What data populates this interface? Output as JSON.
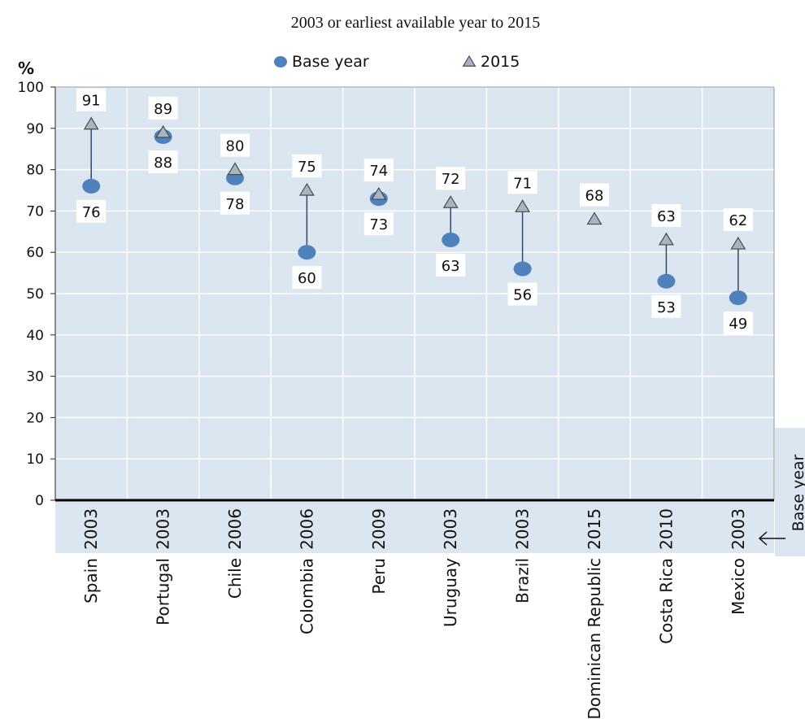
{
  "chart_data": {
    "type": "scatter",
    "title": "2003 or earliest available year to 2015",
    "ylabel": "%",
    "ylim": [
      0,
      100
    ],
    "yticks": [
      0,
      10,
      20,
      30,
      40,
      50,
      60,
      70,
      80,
      90,
      100
    ],
    "categories": [
      "Spain",
      "Portugal",
      "Chile",
      "Colombia",
      "Peru",
      "Uruguay",
      "Brazil",
      "Dominican Republic",
      "Costa Rica",
      "Mexico"
    ],
    "base_years": [
      "2003",
      "2003",
      "2006",
      "2006",
      "2009",
      "2003",
      "2003",
      "2015",
      "2010",
      "2003"
    ],
    "series": [
      {
        "name": "Base year",
        "marker": "circle",
        "color": "#4f81bd",
        "values": [
          76,
          88,
          78,
          60,
          73,
          63,
          56,
          null,
          53,
          49
        ]
      },
      {
        "name": "2015",
        "marker": "triangle",
        "color": "#a6b4c4",
        "values": [
          91,
          89,
          80,
          75,
          74,
          72,
          71,
          68,
          63,
          62
        ]
      }
    ],
    "base_year_axis_label": "Base year",
    "grid": true,
    "legend": "top"
  }
}
